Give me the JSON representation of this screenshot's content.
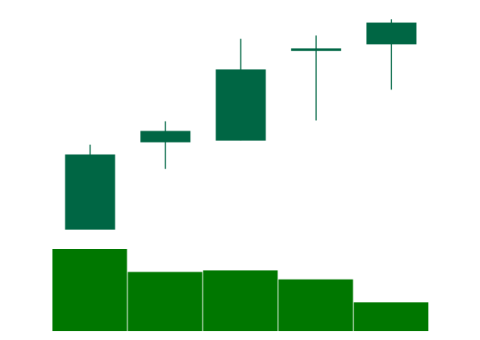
{
  "chart_data": [
    {
      "type": "candlestick",
      "series": [
        {
          "open": 0.93,
          "high": 1.05,
          "low": 0.0,
          "close": 0.0
        },
        {
          "open": 1.08,
          "high": 1.34,
          "low": 0.75,
          "close": 1.22
        },
        {
          "open": 1.1,
          "high": 2.36,
          "low": 1.1,
          "close": 1.98
        },
        {
          "open": 2.22,
          "high": 2.4,
          "low": 1.35,
          "close": 2.24
        },
        {
          "open": 2.56,
          "high": 2.6,
          "low": 1.73,
          "close": 2.29
        }
      ],
      "grid": false,
      "colors": {
        "body": "#006644",
        "wick": "#006644"
      }
    },
    {
      "type": "bar",
      "values": [
        100,
        72,
        74,
        63,
        35
      ],
      "grid": false,
      "colors": {
        "bar": "#007700"
      }
    }
  ]
}
